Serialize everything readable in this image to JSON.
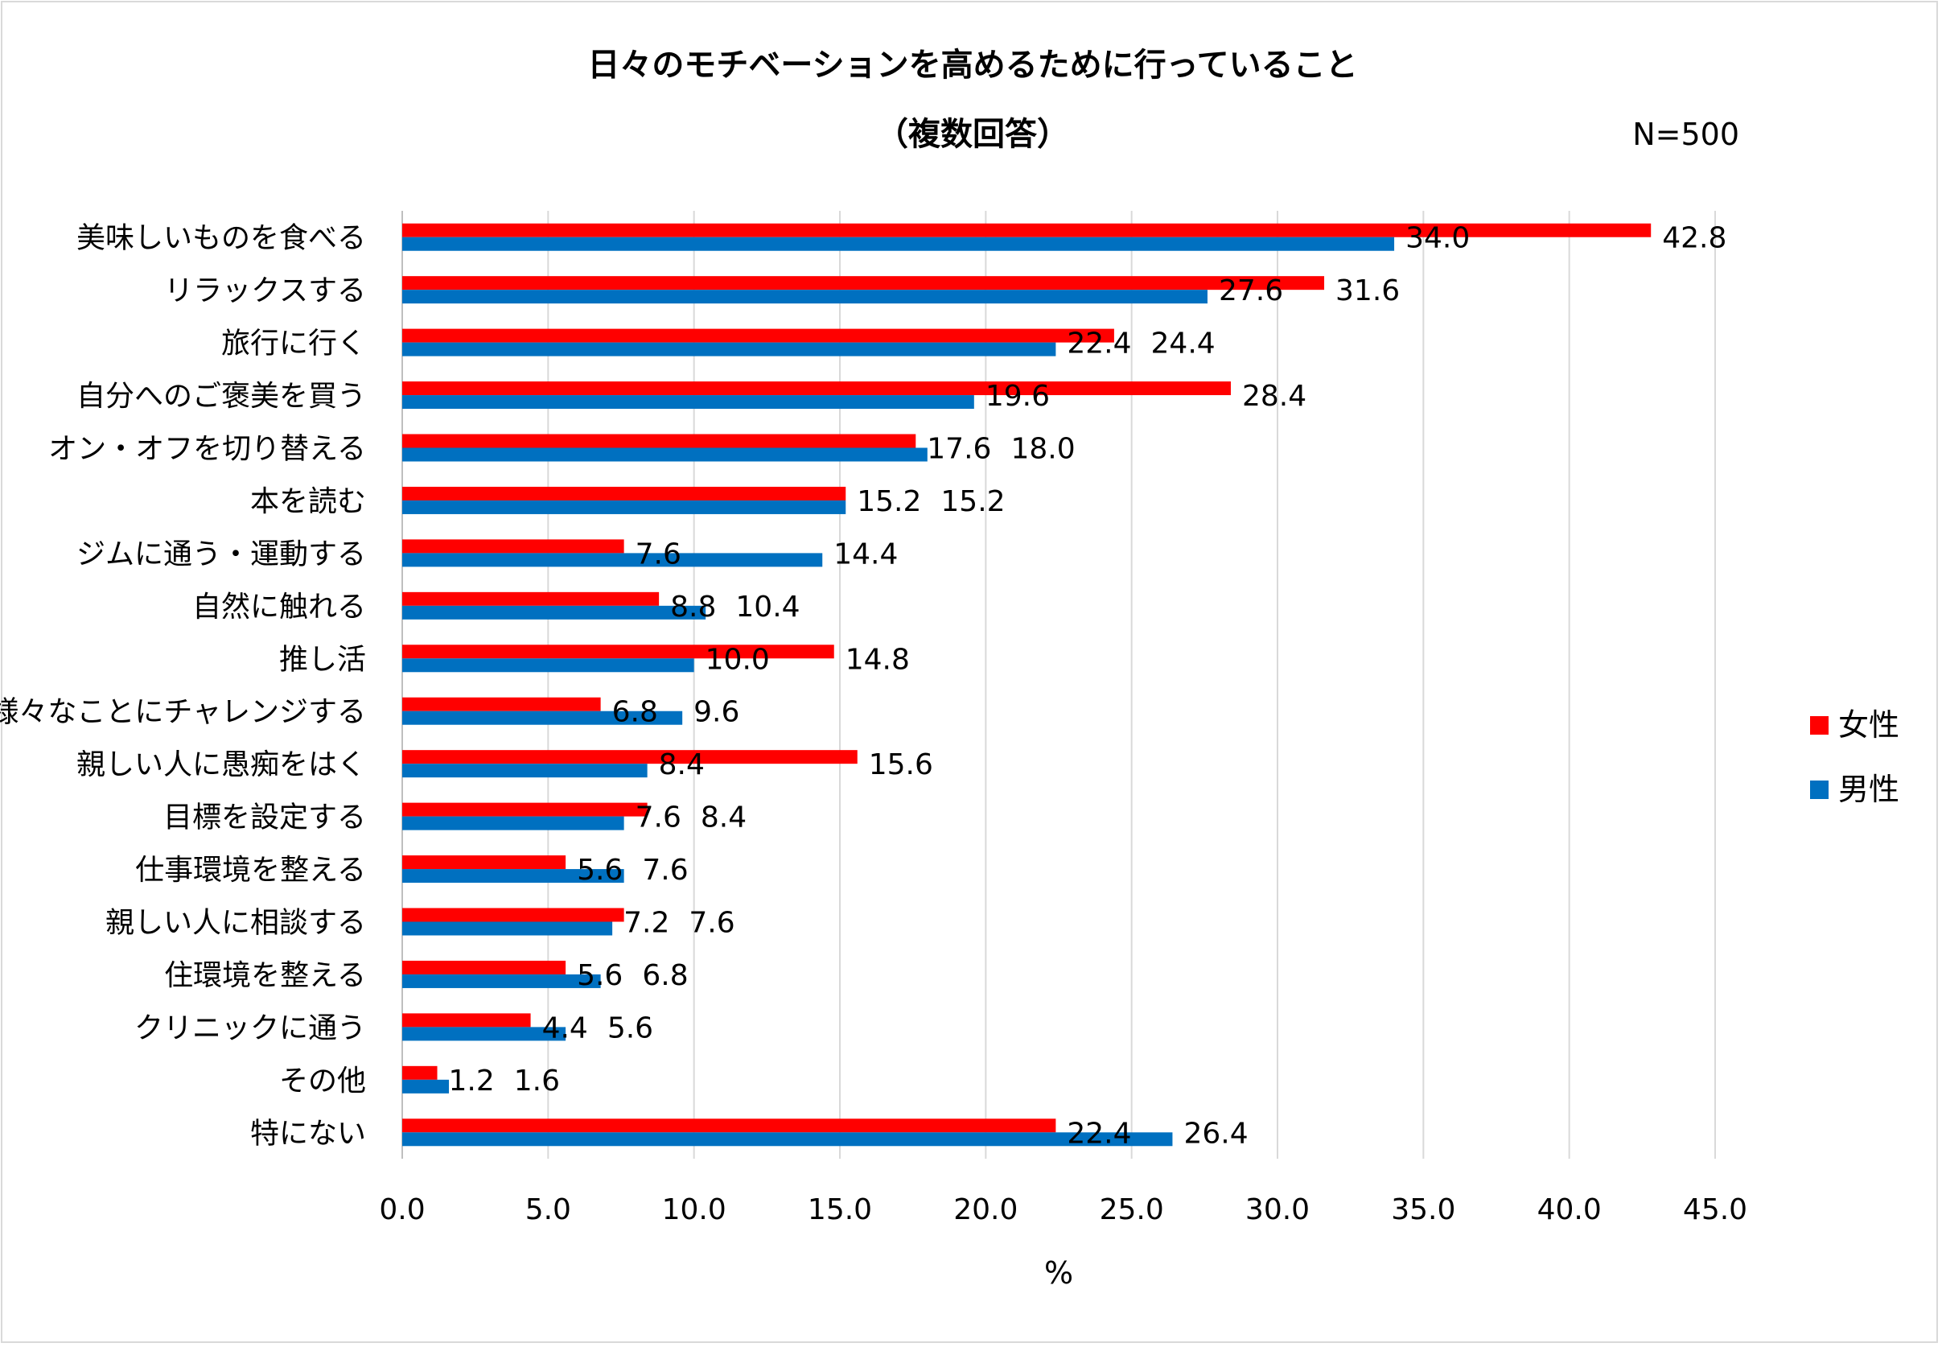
{
  "chart_data": {
    "type": "bar",
    "orientation": "horizontal",
    "title": "日々のモチベーションを高めるために行っていること",
    "subtitle": "（複数回答）",
    "annotation": "N=500",
    "xlabel": "%",
    "ylabel": "",
    "xlim": [
      0,
      45
    ],
    "x_ticks": [
      "0.0",
      "5.0",
      "10.0",
      "15.0",
      "20.0",
      "25.0",
      "30.0",
      "35.0",
      "40.0",
      "45.0"
    ],
    "grid": "vertical",
    "legend_position": "right",
    "categories": [
      "美味しいものを食べる",
      "リラックスする",
      "旅行に行く",
      "自分へのご褒美を買う",
      "オン・オフを切り替える",
      "本を読む",
      "ジムに通う・運動する",
      "自然に触れる",
      "推し活",
      "様々なことにチャレンジする",
      "親しい人に愚痴をはく",
      "目標を設定する",
      "仕事環境を整える",
      "親しい人に相談する",
      "住環境を整える",
      "クリニックに通う",
      "その他",
      "特にない"
    ],
    "series": [
      {
        "name": "女性",
        "color": "#FF0000",
        "values": [
          42.8,
          31.6,
          24.4,
          28.4,
          17.6,
          15.2,
          7.6,
          8.8,
          14.8,
          6.8,
          15.6,
          8.4,
          5.6,
          7.6,
          5.6,
          4.4,
          1.2,
          22.4
        ]
      },
      {
        "name": "男性",
        "color": "#0070C0",
        "values": [
          34.0,
          27.6,
          22.4,
          19.6,
          18.0,
          15.2,
          14.4,
          10.4,
          10.0,
          9.6,
          8.4,
          7.6,
          7.6,
          7.2,
          6.8,
          5.6,
          1.6,
          26.4
        ]
      }
    ]
  }
}
